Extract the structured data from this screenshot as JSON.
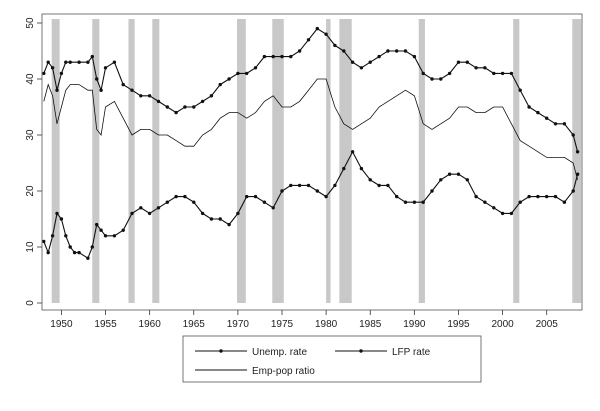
{
  "chart_data": {
    "type": "line",
    "title": "",
    "xlabel": "",
    "ylabel": "",
    "xlim": [
      1947.8,
      2009.0
    ],
    "ylim": [
      0,
      50
    ],
    "xticks": [
      1950,
      1955,
      1960,
      1965,
      1970,
      1975,
      1980,
      1985,
      1990,
      1995,
      2000,
      2005
    ],
    "yticks": [
      0,
      10,
      20,
      30,
      40,
      50
    ],
    "grid": false,
    "legend_position": "bottom",
    "recession_shading": [
      [
        1948.9,
        1949.8
      ],
      [
        1953.5,
        1954.3
      ],
      [
        1957.6,
        1958.3
      ],
      [
        1960.3,
        1961.1
      ],
      [
        1969.9,
        1970.9
      ],
      [
        1973.9,
        1975.2
      ],
      [
        1980.0,
        1980.5
      ],
      [
        1981.5,
        1982.9
      ],
      [
        1990.5,
        1991.2
      ],
      [
        2001.2,
        2001.9
      ],
      [
        2007.9,
        2008.9
      ]
    ],
    "series": [
      {
        "name": "Unemp. rate",
        "marker": "dot",
        "x": [
          1948.0,
          1948.5,
          1949.0,
          1949.5,
          1950.0,
          1950.5,
          1951.0,
          1951.5,
          1952.0,
          1953.0,
          1953.5,
          1954.0,
          1954.5,
          1955.0,
          1956.0,
          1957.0,
          1958.0,
          1959.0,
          1960.0,
          1961.0,
          1962.0,
          1963.0,
          1964.0,
          1965.0,
          1966.0,
          1967.0,
          1968.0,
          1969.0,
          1970.0,
          1971.0,
          1972.0,
          1973.0,
          1974.0,
          1975.0,
          1976.0,
          1977.0,
          1978.0,
          1979.0,
          1980.0,
          1981.0,
          1982.0,
          1983.0,
          1984.0,
          1985.0,
          1986.0,
          1987.0,
          1988.0,
          1989.0,
          1990.0,
          1991.0,
          1992.0,
          1993.0,
          1994.0,
          1995.0,
          1996.0,
          1997.0,
          1998.0,
          1999.0,
          2000.0,
          2001.0,
          2002.0,
          2003.0,
          2004.0,
          2005.0,
          2006.0,
          2007.0,
          2008.0,
          2008.5
        ],
        "values": [
          11,
          9,
          12,
          16,
          15,
          12,
          10,
          9,
          9,
          8,
          10,
          14,
          13,
          12,
          12,
          13,
          16,
          17,
          16,
          17,
          18,
          19,
          19,
          18,
          16,
          15,
          15,
          14,
          16,
          19,
          19,
          18,
          17,
          20,
          21,
          21,
          21,
          20,
          19,
          21,
          24,
          27,
          24,
          22,
          21,
          21,
          19,
          18,
          18,
          18,
          20,
          22,
          23,
          23,
          22,
          19,
          18,
          17,
          16,
          16,
          18,
          19,
          19,
          19,
          19,
          18,
          20,
          23
        ]
      },
      {
        "name": "LFP rate",
        "marker": "dot",
        "x": [
          1948.0,
          1948.5,
          1949.0,
          1949.5,
          1950.0,
          1950.5,
          1951.0,
          1952.0,
          1953.0,
          1953.5,
          1954.0,
          1954.5,
          1955.0,
          1956.0,
          1957.0,
          1958.0,
          1959.0,
          1960.0,
          1961.0,
          1962.0,
          1963.0,
          1964.0,
          1965.0,
          1966.0,
          1967.0,
          1968.0,
          1969.0,
          1970.0,
          1971.0,
          1972.0,
          1973.0,
          1974.0,
          1975.0,
          1976.0,
          1977.0,
          1978.0,
          1979.0,
          1980.0,
          1981.0,
          1982.0,
          1983.0,
          1984.0,
          1985.0,
          1986.0,
          1987.0,
          1988.0,
          1989.0,
          1990.0,
          1991.0,
          1992.0,
          1993.0,
          1994.0,
          1995.0,
          1996.0,
          1997.0,
          1998.0,
          1999.0,
          2000.0,
          2001.0,
          2002.0,
          2003.0,
          2004.0,
          2005.0,
          2006.0,
          2007.0,
          2008.0,
          2008.5
        ],
        "values": [
          41,
          43,
          42,
          38,
          41,
          43,
          43,
          43,
          43,
          44,
          40,
          38,
          42,
          43,
          39,
          38,
          37,
          37,
          36,
          35,
          34,
          35,
          35,
          36,
          37,
          39,
          40,
          41,
          41,
          42,
          44,
          44,
          44,
          44,
          45,
          47,
          49,
          48,
          46,
          45,
          43,
          42,
          43,
          44,
          45,
          45,
          45,
          44,
          41,
          40,
          40,
          41,
          43,
          43,
          42,
          42,
          41,
          41,
          41,
          38,
          35,
          34,
          33,
          32,
          32,
          30,
          27
        ]
      },
      {
        "name": "Emp-pop ratio",
        "marker": "none",
        "x": [
          1948.0,
          1948.5,
          1949.0,
          1949.5,
          1950.0,
          1950.5,
          1951.0,
          1952.0,
          1953.0,
          1953.5,
          1954.0,
          1954.5,
          1955.0,
          1956.0,
          1957.0,
          1958.0,
          1959.0,
          1960.0,
          1961.0,
          1962.0,
          1963.0,
          1964.0,
          1965.0,
          1966.0,
          1967.0,
          1968.0,
          1969.0,
          1970.0,
          1971.0,
          1972.0,
          1973.0,
          1974.0,
          1975.0,
          1976.0,
          1977.0,
          1978.0,
          1979.0,
          1980.0,
          1981.0,
          1982.0,
          1983.0,
          1984.0,
          1985.0,
          1986.0,
          1987.0,
          1988.0,
          1989.0,
          1990.0,
          1991.0,
          1992.0,
          1993.0,
          1994.0,
          1995.0,
          1996.0,
          1997.0,
          1998.0,
          1999.0,
          2000.0,
          2001.0,
          2002.0,
          2003.0,
          2004.0,
          2005.0,
          2006.0,
          2007.0,
          2008.0,
          2008.5
        ],
        "values": [
          36,
          39,
          37,
          32,
          35,
          38,
          39,
          39,
          38,
          38,
          31,
          30,
          35,
          36,
          33,
          30,
          31,
          31,
          30,
          30,
          29,
          28,
          28,
          30,
          31,
          33,
          34,
          34,
          33,
          34,
          36,
          37,
          35,
          35,
          36,
          38,
          40,
          40,
          35,
          32,
          31,
          32,
          33,
          35,
          36,
          37,
          38,
          37,
          32,
          31,
          32,
          33,
          35,
          35,
          34,
          34,
          35,
          35,
          32,
          29,
          28,
          27,
          26,
          26,
          26,
          25,
          22
        ]
      }
    ]
  }
}
